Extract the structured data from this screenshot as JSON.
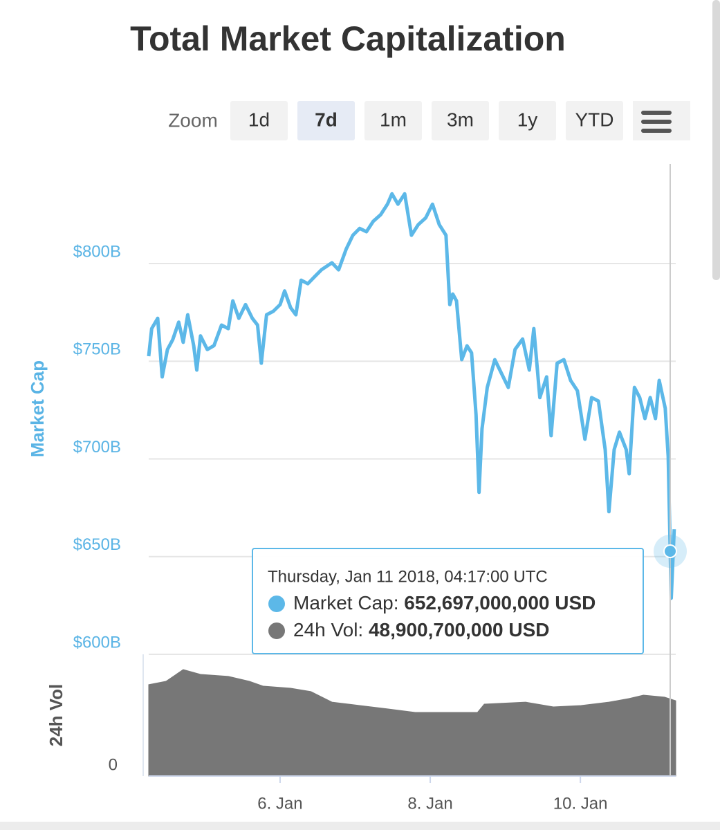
{
  "chart_data": [
    {
      "type": "line",
      "title": "Total Market Capitalization",
      "zoom_label": "Zoom",
      "range_buttons": [
        "1d",
        "7d",
        "1m",
        "3m",
        "1y",
        "YTD"
      ],
      "selected_range": 1,
      "x": [
        4.25,
        4.29,
        4.37,
        4.43,
        4.5,
        4.57,
        4.65,
        4.71,
        4.77,
        4.85,
        4.89,
        4.94,
        5.03,
        5.12,
        5.22,
        5.31,
        5.37,
        5.45,
        5.54,
        5.63,
        5.7,
        5.75,
        5.82,
        5.91,
        6.0,
        6.06,
        6.14,
        6.21,
        6.28,
        6.37,
        6.46,
        6.55,
        6.69,
        6.78,
        6.88,
        6.97,
        7.06,
        7.15,
        7.24,
        7.34,
        7.43,
        7.49,
        7.57,
        7.66,
        7.75,
        7.84,
        7.94,
        8.03,
        8.12,
        8.21,
        8.26,
        8.3,
        8.35,
        8.42,
        8.49,
        8.55,
        8.61,
        8.65,
        8.69,
        8.76,
        8.86,
        8.95,
        9.04,
        9.13,
        9.23,
        9.32,
        9.38,
        9.46,
        9.55,
        9.61,
        9.69,
        9.78,
        9.87,
        9.96,
        10.06,
        10.15,
        10.24,
        10.33,
        10.38,
        10.45,
        10.52,
        10.61,
        10.65,
        10.72,
        10.79,
        10.86,
        10.93,
        11.0,
        11.05,
        11.13,
        11.17,
        11.21,
        11.25
      ],
      "series": [
        {
          "name": "Market Cap",
          "color": "#5cb8e8",
          "values": [
            752.6,
            766.7,
            772,
            742,
            756,
            761,
            770,
            759.7,
            773.8,
            757.9,
            745.5,
            763,
            756,
            758,
            768.5,
            766.7,
            780.9,
            772,
            779,
            772,
            768.5,
            749,
            773.8,
            775.6,
            779,
            786,
            777.4,
            773.8,
            791.5,
            789.7,
            793.3,
            796.8,
            800.4,
            796.8,
            807.4,
            814.5,
            818,
            816.3,
            821.6,
            825,
            830.4,
            835.7,
            830.4,
            835.7,
            814.5,
            819.9,
            823.4,
            830.4,
            819.9,
            814.5,
            779,
            784.4,
            780.9,
            750.8,
            757.9,
            754.3,
            722.5,
            682.9,
            715.4,
            736.6,
            750.8,
            743.7,
            736.6,
            756.1,
            761.4,
            745.5,
            766.7,
            731.4,
            742,
            711.9,
            749,
            750.8,
            740.2,
            734.9,
            710.1,
            731.4,
            729.6,
            704.8,
            673,
            704.8,
            713.7,
            704.8,
            692.4,
            736.6,
            731.4,
            720.7,
            731.4,
            720.7,
            740.2,
            726,
            701.3,
            628.7,
            664
          ]
        }
      ],
      "xlim": [
        4.25,
        11.27
      ],
      "ylim": [
        600,
        851
      ],
      "yticks": [
        {
          "value": 600,
          "label": "$600B"
        },
        {
          "value": 650,
          "label": "$650B"
        },
        {
          "value": 700,
          "label": "$700B"
        },
        {
          "value": 750,
          "label": "$750B"
        },
        {
          "value": 800,
          "label": "$800B"
        }
      ],
      "grid": true,
      "tooltip": {
        "header": "Thursday, Jan 11 2018, 04:17:00 UTC",
        "rows": [
          {
            "name": "Market Cap:",
            "value": "652,697,000,000 USD",
            "color": "#5cb8e8"
          },
          {
            "name": "24h Vol:",
            "value": "48,900,700,000 USD",
            "color": "#777777"
          }
        ]
      }
    },
    {
      "type": "area",
      "x": [
        4.25,
        4.48,
        4.71,
        4.94,
        5.31,
        5.59,
        5.77,
        6.14,
        6.41,
        6.69,
        7.06,
        7.43,
        7.8,
        8.17,
        8.63,
        8.72,
        9.27,
        9.64,
        10.01,
        10.38,
        10.65,
        10.84,
        11.12,
        11.27
      ],
      "series": [
        {
          "name": "24h Vol",
          "color": "#777777",
          "values": [
            59.3,
            61.5,
            69.1,
            66,
            64.7,
            61.5,
            58.4,
            57,
            54.8,
            48,
            45.8,
            43.6,
            41.3,
            41.3,
            41.3,
            46.7,
            48,
            44.9,
            45.8,
            48,
            50.3,
            52.5,
            51.2,
            48.9
          ]
        }
      ],
      "xlim": [
        4.25,
        11.27
      ],
      "ylim": [
        0,
        79
      ],
      "yticks": [
        0
      ],
      "xticks": [
        {
          "value": 6,
          "label": "6. Jan"
        },
        {
          "value": 8,
          "label": "8. Jan"
        },
        {
          "value": 10,
          "label": "10. Jan"
        }
      ]
    }
  ]
}
